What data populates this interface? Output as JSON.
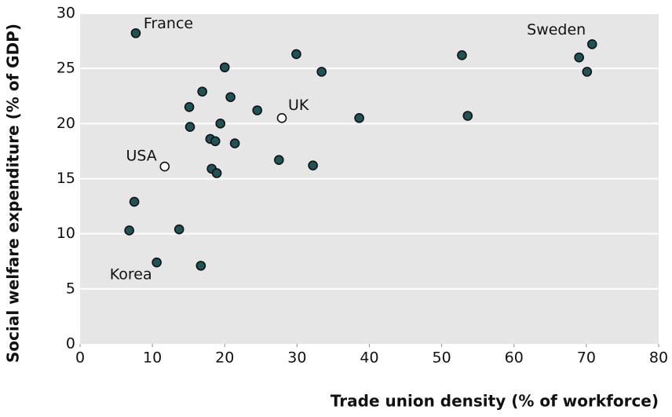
{
  "chart_data": {
    "type": "scatter",
    "xlabel": "Trade union density (% of workforce)",
    "ylabel": "Social welfare expenditure (% of GDP)",
    "xlim": [
      0,
      80
    ],
    "xticks": [
      0,
      10,
      20,
      30,
      40,
      50,
      60,
      70,
      80
    ],
    "ylim": [
      0,
      30
    ],
    "yticks": [
      0,
      5,
      10,
      15,
      20,
      25,
      30
    ],
    "grid": true,
    "series": [
      {
        "color": "#1e5457",
        "fill": "filled",
        "x": [
          7.7,
          29.9,
          20.0,
          33.4,
          52.8,
          53.6,
          69.0,
          70.8,
          70.1,
          16.9,
          20.8,
          15.1,
          24.5,
          38.6,
          15.2,
          19.4,
          18.0,
          18.7,
          21.4,
          27.5,
          32.2,
          18.2,
          18.9,
          7.5,
          6.8,
          13.7,
          10.6,
          16.7
        ],
        "values": [
          28.2,
          26.3,
          25.1,
          24.7,
          26.2,
          20.7,
          26.0,
          27.2,
          24.7,
          22.9,
          22.4,
          21.5,
          21.2,
          20.5,
          19.7,
          20.0,
          18.6,
          18.4,
          18.2,
          16.7,
          16.2,
          15.9,
          15.5,
          12.9,
          10.3,
          10.4,
          7.4,
          7.1
        ],
        "labels": [
          "France",
          null,
          null,
          null,
          null,
          null,
          null,
          "Sweden",
          null,
          null,
          null,
          null,
          null,
          null,
          null,
          null,
          null,
          null,
          null,
          null,
          null,
          null,
          null,
          null,
          null,
          null,
          "Korea",
          null
        ]
      },
      {
        "color": "#ffffff",
        "fill": "hollow",
        "x": [
          27.9,
          11.7
        ],
        "values": [
          20.5,
          16.1
        ],
        "labels": [
          "UK",
          "USA"
        ]
      }
    ]
  }
}
